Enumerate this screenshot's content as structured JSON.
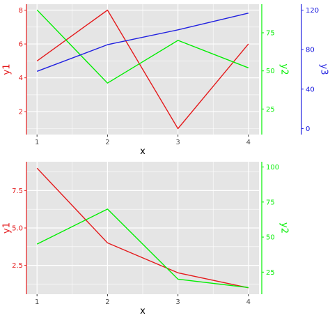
{
  "colors": {
    "panel_bg": "#e5e5e5",
    "grid": "#ffffff",
    "y1": "#e41a1c",
    "y2": "#00ee00",
    "y3": "#2020e0",
    "axis_text": "#4d4d4d",
    "title_text": "#000000"
  },
  "chart_data": [
    {
      "type": "line",
      "xlabel": "x",
      "x": [
        1,
        2,
        3,
        4
      ],
      "xlim": [
        0.85,
        4.15
      ],
      "x_ticks": [
        1,
        2,
        3,
        4
      ],
      "grid": true,
      "axes": [
        {
          "id": "y1",
          "label": "y1",
          "side": "left",
          "ticks": [
            2,
            4,
            6,
            8
          ],
          "tick_labels": [
            "2",
            "4",
            "6",
            "8"
          ],
          "lim": [
            0.65,
            8.35
          ]
        },
        {
          "id": "y2",
          "label": "y2",
          "side": "right",
          "ticks": [
            25,
            50,
            75
          ],
          "tick_labels": [
            "25",
            "50",
            "75"
          ],
          "lim": [
            8.25,
            93.75
          ]
        },
        {
          "id": "y3",
          "label": "y3",
          "side": "right",
          "ticks": [
            0,
            40,
            80,
            120
          ],
          "tick_labels": [
            "0",
            "40",
            "80",
            "120"
          ],
          "lim": [
            -6,
            126
          ]
        }
      ],
      "series": [
        {
          "name": "y1",
          "axis": "y1",
          "values": [
            5,
            8,
            1,
            6
          ]
        },
        {
          "name": "y2",
          "axis": "y2",
          "values": [
            90,
            42,
            70,
            52
          ]
        },
        {
          "name": "y3",
          "axis": "y3",
          "values": [
            58,
            85,
            100,
            117
          ]
        }
      ]
    },
    {
      "type": "line",
      "xlabel": "x",
      "x": [
        1,
        2,
        3,
        4
      ],
      "xlim": [
        0.85,
        4.15
      ],
      "x_ticks": [
        1,
        2,
        3,
        4
      ],
      "grid": true,
      "axes": [
        {
          "id": "y1",
          "label": "y1",
          "side": "left",
          "ticks": [
            2.5,
            5.0,
            7.5
          ],
          "tick_labels": [
            "2.5",
            "5.0",
            "7.5"
          ],
          "lim": [
            0.57,
            9.43
          ]
        },
        {
          "id": "y2",
          "label": "y2",
          "side": "right",
          "ticks": [
            25,
            50,
            75,
            100
          ],
          "tick_labels": [
            "25",
            "50",
            "75",
            "100"
          ],
          "lim": [
            9.25,
            103.75
          ]
        }
      ],
      "series": [
        {
          "name": "y1",
          "axis": "y1",
          "values": [
            9,
            4,
            2,
            1
          ]
        },
        {
          "name": "y2",
          "axis": "y2",
          "values": [
            45,
            70,
            20,
            14
          ]
        }
      ]
    }
  ]
}
